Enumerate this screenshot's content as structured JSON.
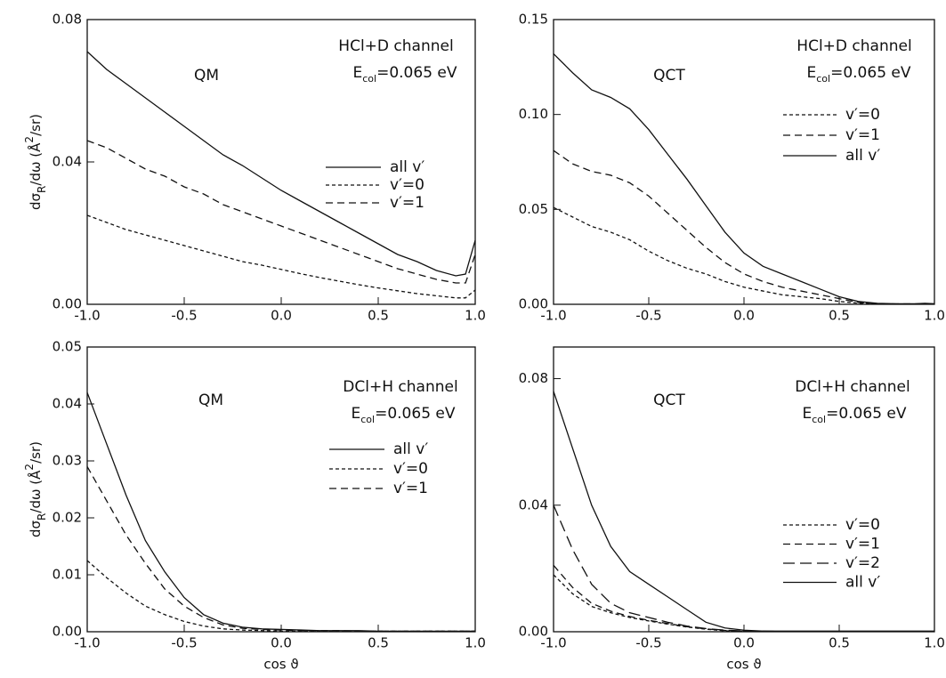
{
  "chart_data": [
    {
      "type": "line",
      "panel_label": "QM",
      "channel": "HCl+D channel",
      "energy": {
        "symbol": "E",
        "subscript": "col",
        "text": "=0.065 eV"
      },
      "ylabel": [
        "dσ",
        "R",
        "/dω  (Å",
        "2",
        "/sr)"
      ],
      "x": [
        -1.0,
        -0.9,
        -0.8,
        -0.7,
        -0.6,
        -0.5,
        -0.4,
        -0.3,
        -0.2,
        -0.1,
        0.0,
        0.1,
        0.2,
        0.3,
        0.4,
        0.5,
        0.6,
        0.7,
        0.8,
        0.9,
        0.95,
        1.0
      ],
      "xlim": [
        -1,
        1
      ],
      "xticks": [
        {
          "value": -1,
          "label": "-1.0"
        },
        {
          "value": -0.5,
          "label": "-0.5"
        },
        {
          "value": 0,
          "label": "0.0"
        },
        {
          "value": 0.5,
          "label": "0.5"
        },
        {
          "value": 1,
          "label": "1.0"
        }
      ],
      "ylim": [
        0,
        0.08
      ],
      "yticks": [
        {
          "value": 0,
          "label": "0.00"
        },
        {
          "value": 0.04,
          "label": "0.04"
        },
        {
          "value": 0.08,
          "label": "0.08"
        }
      ],
      "series": [
        {
          "name": "all v′",
          "color": "#111111",
          "dash": "solid",
          "values": [
            0.071,
            0.066,
            0.062,
            0.058,
            0.054,
            0.05,
            0.046,
            0.042,
            0.039,
            0.0355,
            0.032,
            0.029,
            0.026,
            0.023,
            0.02,
            0.017,
            0.014,
            0.012,
            0.0095,
            0.008,
            0.0085,
            0.018
          ]
        },
        {
          "name": "v′=0",
          "color": "#111111",
          "dash": "dotted",
          "values": [
            0.025,
            0.023,
            0.021,
            0.0195,
            0.018,
            0.0165,
            0.015,
            0.0135,
            0.012,
            0.011,
            0.0098,
            0.0086,
            0.0075,
            0.0065,
            0.0055,
            0.0046,
            0.0038,
            0.003,
            0.0024,
            0.0018,
            0.0018,
            0.004
          ]
        },
        {
          "name": "v′=1",
          "color": "#111111",
          "dash": "dashed",
          "values": [
            0.046,
            0.044,
            0.041,
            0.038,
            0.036,
            0.033,
            0.031,
            0.028,
            0.026,
            0.024,
            0.022,
            0.02,
            0.018,
            0.016,
            0.014,
            0.012,
            0.01,
            0.0085,
            0.007,
            0.006,
            0.006,
            0.014
          ]
        }
      ]
    },
    {
      "type": "line",
      "panel_label": "QCT",
      "channel": "HCl+D channel",
      "energy": {
        "symbol": "E",
        "subscript": "col",
        "text": "=0.065 eV"
      },
      "x": [
        -1.0,
        -0.9,
        -0.8,
        -0.7,
        -0.6,
        -0.5,
        -0.4,
        -0.3,
        -0.2,
        -0.1,
        0.0,
        0.1,
        0.2,
        0.3,
        0.4,
        0.5,
        0.6,
        0.7,
        0.8,
        0.9,
        0.95,
        1.0
      ],
      "xlim": [
        -1,
        1
      ],
      "xticks": [
        {
          "value": -1,
          "label": "-1.0"
        },
        {
          "value": -0.5,
          "label": "-0.5"
        },
        {
          "value": 0,
          "label": "0.0"
        },
        {
          "value": 0.5,
          "label": "0.5"
        },
        {
          "value": 1,
          "label": "1.0"
        }
      ],
      "ylim": [
        0,
        0.15
      ],
      "yticks": [
        {
          "value": 0,
          "label": "0.00"
        },
        {
          "value": 0.05,
          "label": "0.05"
        },
        {
          "value": 0.1,
          "label": "0.10"
        },
        {
          "value": 0.15,
          "label": "0.15"
        }
      ],
      "series": [
        {
          "name": "v′=0",
          "color": "#111111",
          "dash": "dotted",
          "values": [
            0.051,
            0.046,
            0.041,
            0.038,
            0.034,
            0.028,
            0.023,
            0.019,
            0.016,
            0.012,
            0.009,
            0.007,
            0.005,
            0.004,
            0.003,
            0.0015,
            0.0006,
            0.0002,
            0.0001,
            0.0001,
            0.0001,
            0.0001
          ]
        },
        {
          "name": "v′=1",
          "color": "#111111",
          "dash": "dashed",
          "values": [
            0.081,
            0.074,
            0.07,
            0.068,
            0.064,
            0.057,
            0.048,
            0.039,
            0.03,
            0.022,
            0.016,
            0.012,
            0.009,
            0.007,
            0.005,
            0.003,
            0.001,
            0.0004,
            0.0002,
            0.0002,
            0.0003,
            0.0002
          ]
        },
        {
          "name": "all v′",
          "color": "#111111",
          "dash": "solid",
          "values": [
            0.132,
            0.122,
            0.113,
            0.109,
            0.103,
            0.092,
            0.079,
            0.066,
            0.052,
            0.038,
            0.027,
            0.02,
            0.016,
            0.012,
            0.008,
            0.004,
            0.0015,
            0.0005,
            0.0003,
            0.0003,
            0.0005,
            0.0003
          ]
        }
      ]
    },
    {
      "type": "line",
      "panel_label": "QM",
      "channel": "DCl+H channel",
      "energy": {
        "symbol": "E",
        "subscript": "col",
        "text": "=0.065 eV"
      },
      "ylabel": [
        "dσ",
        "R",
        "/dω  (Å",
        "2",
        "/sr)"
      ],
      "xlabel": "cos ϑ",
      "x": [
        -1.0,
        -0.9,
        -0.8,
        -0.7,
        -0.6,
        -0.5,
        -0.4,
        -0.3,
        -0.2,
        -0.1,
        0.0,
        0.1,
        0.2,
        0.3,
        0.4,
        0.5,
        0.6,
        0.7,
        0.8,
        0.9,
        0.95,
        1.0
      ],
      "xlim": [
        -1,
        1
      ],
      "xticks": [
        {
          "value": -1,
          "label": "-1.0"
        },
        {
          "value": -0.5,
          "label": "-0.5"
        },
        {
          "value": 0,
          "label": "0.0"
        },
        {
          "value": 0.5,
          "label": "0.5"
        },
        {
          "value": 1,
          "label": "1.0"
        }
      ],
      "ylim": [
        0,
        0.05
      ],
      "yticks": [
        {
          "value": 0,
          "label": "0.00"
        },
        {
          "value": 0.01,
          "label": "0.01"
        },
        {
          "value": 0.02,
          "label": "0.02"
        },
        {
          "value": 0.03,
          "label": "0.03"
        },
        {
          "value": 0.04,
          "label": "0.04"
        },
        {
          "value": 0.05,
          "label": "0.05"
        }
      ],
      "series": [
        {
          "name": "all v′",
          "color": "#111111",
          "dash": "solid",
          "values": [
            0.042,
            0.033,
            0.024,
            0.016,
            0.0105,
            0.006,
            0.003,
            0.0015,
            0.0008,
            0.0005,
            0.0004,
            0.0003,
            0.0002,
            0.0002,
            0.0002,
            0.0001,
            0.0001,
            0.0001,
            0.0001,
            0.0001,
            0.0001,
            0.0001
          ]
        },
        {
          "name": "v′=0",
          "color": "#111111",
          "dash": "dotted",
          "values": [
            0.0125,
            0.0095,
            0.0068,
            0.0045,
            0.003,
            0.0018,
            0.001,
            0.0005,
            0.0003,
            0.0002,
            0.0001,
            0.0001,
            0.0001,
            0.0001,
            0.0001,
            0.0001,
            0.0001,
            0.0001,
            0.0001,
            0.0001,
            0.0001,
            0.0001
          ]
        },
        {
          "name": "v′=1",
          "color": "#111111",
          "dash": "dashed",
          "values": [
            0.029,
            0.023,
            0.017,
            0.012,
            0.0075,
            0.0045,
            0.0025,
            0.0012,
            0.0006,
            0.0004,
            0.0003,
            0.0002,
            0.0002,
            0.0002,
            0.0001,
            0.0001,
            0.0001,
            0.0001,
            0.0001,
            0.0001,
            0.0001,
            0.0001
          ]
        }
      ]
    },
    {
      "type": "line",
      "panel_label": "QCT",
      "channel": "DCl+H channel",
      "energy": {
        "symbol": "E",
        "subscript": "col",
        "text": "=0.065 eV"
      },
      "xlabel": "cos ϑ",
      "x": [
        -1.0,
        -0.9,
        -0.8,
        -0.7,
        -0.6,
        -0.5,
        -0.4,
        -0.3,
        -0.2,
        -0.1,
        0.0,
        0.1,
        0.2,
        0.3,
        0.4,
        0.5,
        0.6,
        0.7,
        0.8,
        0.9,
        0.95,
        1.0
      ],
      "xlim": [
        -1,
        1
      ],
      "xticks": [
        {
          "value": -1,
          "label": "-1.0"
        },
        {
          "value": -0.5,
          "label": "-0.5"
        },
        {
          "value": 0,
          "label": "0.0"
        },
        {
          "value": 0.5,
          "label": "0.5"
        },
        {
          "value": 1,
          "label": "1.0"
        }
      ],
      "ylim": [
        0,
        0.09
      ],
      "yticks": [
        {
          "value": 0,
          "label": "0.00"
        },
        {
          "value": 0.04,
          "label": "0.04"
        },
        {
          "value": 0.08,
          "label": "0.08"
        }
      ],
      "series": [
        {
          "name": "v′=0",
          "color": "#111111",
          "dash": "dotted",
          "values": [
            0.018,
            0.012,
            0.008,
            0.006,
            0.0045,
            0.0034,
            0.0024,
            0.0015,
            0.0008,
            0.0003,
            0.0001,
            0.0001,
            0.0001,
            0.0001,
            0.0001,
            0.0001,
            0.0001,
            0.0001,
            0.0001,
            0.0001,
            0.0001,
            0.0001
          ]
        },
        {
          "name": "v′=1",
          "color": "#111111",
          "dash": "dashed",
          "values": [
            0.021,
            0.014,
            0.009,
            0.0065,
            0.0048,
            0.0036,
            0.0026,
            0.0016,
            0.0009,
            0.0004,
            0.0002,
            0.0001,
            0.0001,
            0.0001,
            0.0001,
            0.0001,
            0.0001,
            0.0001,
            0.0001,
            0.0001,
            0.0001,
            0.0001
          ]
        },
        {
          "name": "v′=2",
          "color": "#111111",
          "dash": "longdash",
          "values": [
            0.04,
            0.026,
            0.015,
            0.009,
            0.006,
            0.0045,
            0.003,
            0.0018,
            0.001,
            0.0005,
            0.0002,
            0.0002,
            0.0001,
            0.0001,
            0.0001,
            0.0001,
            0.0001,
            0.0001,
            0.0001,
            0.0001,
            0.0001,
            0.0001
          ]
        },
        {
          "name": "all v′",
          "color": "#111111",
          "dash": "solid",
          "values": [
            0.076,
            0.058,
            0.04,
            0.027,
            0.019,
            0.015,
            0.011,
            0.007,
            0.003,
            0.0012,
            0.0005,
            0.0002,
            0.0002,
            0.0002,
            0.0002,
            0.0002,
            0.0002,
            0.0002,
            0.0002,
            0.0002,
            0.0002,
            0.0002
          ]
        }
      ]
    }
  ]
}
